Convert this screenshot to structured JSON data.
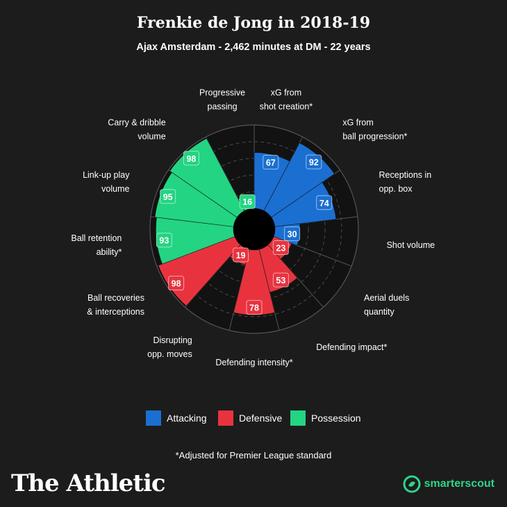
{
  "header": {
    "title": "Frenkie de Jong in 2018-19",
    "subtitle": "Ajax Amsterdam - 2,462 minutes at DM - 22 years"
  },
  "colors": {
    "background": "#1c1c1c",
    "attacking": "#1b6fd1",
    "defensive": "#e8333f",
    "possession": "#23d483",
    "grid": "#555555",
    "smarterscout": "#2fd48a"
  },
  "legend": {
    "items": [
      {
        "key": "attacking",
        "label": "Attacking"
      },
      {
        "key": "defensive",
        "label": "Defensive"
      },
      {
        "key": "possession",
        "label": "Possession"
      }
    ]
  },
  "footnote": "*Adjusted for Premier League standard",
  "branding": {
    "publisher": "The Athletic",
    "partner": "smarterscout",
    "partner_icon": "smarterscout-logo-icon"
  },
  "chart_data": {
    "type": "polar-area",
    "title": "Frenkie de Jong in 2018-19",
    "scale_max": 100,
    "grid_rings": [
      20,
      40,
      60,
      80,
      100
    ],
    "categories": [
      {
        "label": "xG from shot creation*",
        "value": 67,
        "group": "attacking"
      },
      {
        "label": "xG from ball progression*",
        "value": 92,
        "group": "attacking"
      },
      {
        "label": "Receptions in opp. box",
        "value": 74,
        "group": "attacking"
      },
      {
        "label": "Shot volume",
        "value": 30,
        "group": "attacking"
      },
      {
        "label": "Aerial duels quantity",
        "value": 23,
        "group": "defensive"
      },
      {
        "label": "Defending impact*",
        "value": 53,
        "group": "defensive"
      },
      {
        "label": "Defending intensity*",
        "value": 78,
        "group": "defensive"
      },
      {
        "label": "Disrupting opp. moves",
        "value": 19,
        "group": "defensive"
      },
      {
        "label": "Ball recoveries & interceptions",
        "value": 98,
        "group": "defensive"
      },
      {
        "label": "Ball retention ability*",
        "value": 93,
        "group": "possession"
      },
      {
        "label": "Link-up play volume",
        "value": 95,
        "group": "possession"
      },
      {
        "label": "Carry & dribble volume",
        "value": 98,
        "group": "possession"
      },
      {
        "label": "Progressive passing",
        "value": 16,
        "group": "possession"
      }
    ],
    "label_lines": [
      [
        "xG from",
        "shot creation*"
      ],
      [
        "xG from",
        "ball progression*"
      ],
      [
        "Receptions in",
        "opp. box"
      ],
      [
        "Shot volume"
      ],
      [
        "Aerial duels",
        "quantity"
      ],
      [
        "Defending impact*"
      ],
      [
        "Defending intensity*"
      ],
      [
        "Disrupting",
        "opp. moves"
      ],
      [
        "Ball recoveries",
        "& interceptions"
      ],
      [
        "Ball retention",
        "ability*"
      ],
      [
        "Link-up play",
        "volume"
      ],
      [
        "Carry & dribble",
        "volume"
      ],
      [
        "Progressive",
        "passing"
      ]
    ]
  }
}
